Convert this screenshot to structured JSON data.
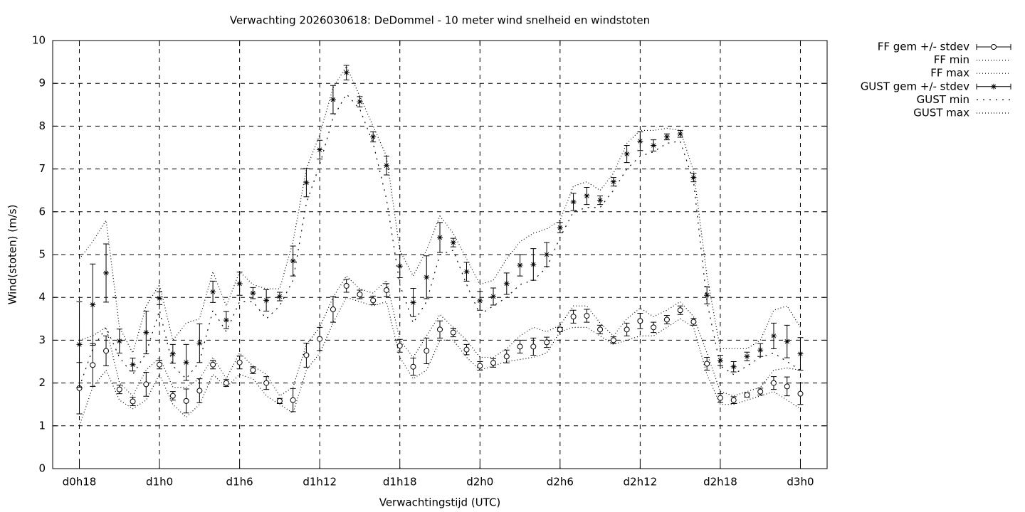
{
  "chart_data": {
    "type": "errorbar-line",
    "title": "Verwachting 2026030618: DeDommel - 10 meter wind snelheid en windstoten",
    "x_label": "Verwachtingstijd (UTC)",
    "y_label": "Wind(stoten) (m/s)",
    "x": [
      0,
      1,
      2,
      3,
      4,
      5,
      6,
      7,
      8,
      9,
      10,
      11,
      12,
      13,
      14,
      15,
      16,
      17,
      18,
      19,
      20,
      21,
      22,
      23,
      24,
      25,
      26,
      27,
      28,
      29,
      30,
      31,
      32,
      33,
      34,
      35,
      36,
      37,
      38,
      39,
      40,
      41,
      42,
      43,
      44,
      45,
      46,
      47,
      48,
      49,
      50,
      51,
      52,
      53,
      54
    ],
    "xlim": [
      -2,
      56
    ],
    "xticks": [
      {
        "value": 0,
        "label": "d0h18"
      },
      {
        "value": 6,
        "label": "d1h0"
      },
      {
        "value": 12,
        "label": "d1h6"
      },
      {
        "value": 18,
        "label": "d1h12"
      },
      {
        "value": 24,
        "label": "d1h18"
      },
      {
        "value": 30,
        "label": "d2h0"
      },
      {
        "value": 36,
        "label": "d2h6"
      },
      {
        "value": 42,
        "label": "d2h12"
      },
      {
        "value": 48,
        "label": "d2h18"
      },
      {
        "value": 54,
        "label": "d3h0"
      }
    ],
    "ylim": [
      0,
      10
    ],
    "yticks": [
      0,
      1,
      2,
      3,
      4,
      5,
      6,
      7,
      8,
      9,
      10
    ],
    "grid": true,
    "legend": "outside-right",
    "series": [
      {
        "name": "FF gem +/- stdev",
        "color": "#000000",
        "style": "errorbars",
        "marker": "circle",
        "values": [
          1.88,
          2.42,
          2.75,
          1.85,
          1.57,
          1.97,
          2.43,
          1.7,
          1.58,
          1.82,
          2.43,
          2.0,
          2.48,
          2.3,
          2.0,
          1.58,
          1.6,
          2.65,
          3.03,
          3.72,
          4.27,
          4.07,
          3.93,
          4.17,
          2.87,
          2.38,
          2.75,
          3.25,
          3.18,
          2.78,
          2.4,
          2.47,
          2.62,
          2.85,
          2.85,
          2.95,
          3.25,
          3.55,
          3.57,
          3.25,
          3.0,
          3.25,
          3.45,
          3.3,
          3.48,
          3.7,
          3.43,
          2.45,
          1.65,
          1.6,
          1.72,
          1.8,
          2.0,
          1.92,
          1.75
        ],
        "errors": [
          0.6,
          0.5,
          0.35,
          0.1,
          0.1,
          0.28,
          0.1,
          0.1,
          0.28,
          0.28,
          0.1,
          0.08,
          0.15,
          0.08,
          0.15,
          0.06,
          0.27,
          0.28,
          0.27,
          0.3,
          0.15,
          0.1,
          0.1,
          0.15,
          0.15,
          0.2,
          0.3,
          0.2,
          0.1,
          0.12,
          0.1,
          0.1,
          0.15,
          0.15,
          0.2,
          0.12,
          0.05,
          0.15,
          0.15,
          0.1,
          0.08,
          0.15,
          0.18,
          0.12,
          0.1,
          0.1,
          0.08,
          0.15,
          0.1,
          0.08,
          0.05,
          0.08,
          0.15,
          0.22,
          0.25
        ]
      },
      {
        "name": "FF min",
        "color": "#000000",
        "style": "dotted",
        "values": [
          1.0,
          1.9,
          2.3,
          1.6,
          1.4,
          1.6,
          2.2,
          1.5,
          1.2,
          1.5,
          2.2,
          1.9,
          2.2,
          2.1,
          1.7,
          1.5,
          1.3,
          2.3,
          2.7,
          3.4,
          4.0,
          3.9,
          3.8,
          3.9,
          2.6,
          2.1,
          2.3,
          3.0,
          3.0,
          2.6,
          2.3,
          2.4,
          2.5,
          2.55,
          2.6,
          2.7,
          3.2,
          3.3,
          3.3,
          3.1,
          2.9,
          3.0,
          3.1,
          3.1,
          3.3,
          3.5,
          3.3,
          2.2,
          1.5,
          1.5,
          1.6,
          1.7,
          1.8,
          1.6,
          1.4
        ]
      },
      {
        "name": "FF max",
        "color": "#000000",
        "style": "dotted",
        "values": [
          3.0,
          3.1,
          3.3,
          2.0,
          1.7,
          2.3,
          2.6,
          1.9,
          1.9,
          2.1,
          2.6,
          2.1,
          2.7,
          2.4,
          2.2,
          1.7,
          1.9,
          2.9,
          3.3,
          4.0,
          4.5,
          4.2,
          4.1,
          4.4,
          3.0,
          2.6,
          3.1,
          3.6,
          3.3,
          3.0,
          2.6,
          2.6,
          2.8,
          3.1,
          3.3,
          3.2,
          3.35,
          3.8,
          3.8,
          3.4,
          3.1,
          3.5,
          3.75,
          3.55,
          3.7,
          3.9,
          3.55,
          2.7,
          1.8,
          1.7,
          1.8,
          1.9,
          2.3,
          2.35,
          2.3
        ]
      },
      {
        "name": "GUST gem +/- stdev",
        "color": "#000000",
        "style": "errorbars",
        "marker": "star",
        "values": [
          2.9,
          3.83,
          4.57,
          2.98,
          2.43,
          3.18,
          3.98,
          2.68,
          2.48,
          2.93,
          4.13,
          3.47,
          4.32,
          4.1,
          3.93,
          4.02,
          4.85,
          6.68,
          7.45,
          8.62,
          9.25,
          8.57,
          7.75,
          7.08,
          4.73,
          3.88,
          4.47,
          5.4,
          5.28,
          4.6,
          3.92,
          4.02,
          4.32,
          4.75,
          4.77,
          5.0,
          5.63,
          6.23,
          6.37,
          6.27,
          6.7,
          7.35,
          7.65,
          7.55,
          7.75,
          7.82,
          6.8,
          4.05,
          2.53,
          2.38,
          2.62,
          2.77,
          3.1,
          2.97,
          2.68
        ],
        "errors": [
          1.0,
          0.95,
          0.68,
          0.28,
          0.15,
          0.5,
          0.15,
          0.22,
          0.42,
          0.45,
          0.25,
          0.2,
          0.27,
          0.13,
          0.25,
          0.1,
          0.35,
          0.33,
          0.22,
          0.33,
          0.17,
          0.12,
          0.12,
          0.22,
          0.27,
          0.33,
          0.5,
          0.35,
          0.1,
          0.22,
          0.22,
          0.2,
          0.25,
          0.25,
          0.37,
          0.28,
          0.12,
          0.2,
          0.2,
          0.1,
          0.1,
          0.2,
          0.22,
          0.13,
          0.07,
          0.08,
          0.1,
          0.2,
          0.12,
          0.12,
          0.1,
          0.15,
          0.3,
          0.38,
          0.38
        ]
      },
      {
        "name": "GUST min",
        "color": "#000000",
        "style": "dotted-wide",
        "values": [
          1.9,
          2.8,
          3.3,
          2.6,
          2.2,
          2.7,
          3.7,
          2.4,
          2.1,
          2.5,
          3.7,
          3.2,
          3.9,
          3.9,
          3.5,
          3.8,
          4.4,
          6.2,
          7.1,
          8.2,
          8.75,
          8.4,
          7.6,
          6.3,
          4.3,
          3.4,
          3.9,
          5.0,
          5.1,
          4.3,
          3.6,
          3.8,
          4.0,
          4.3,
          4.4,
          4.7,
          5.4,
          6.0,
          6.1,
          6.1,
          6.5,
          7.0,
          7.3,
          7.4,
          7.6,
          7.65,
          6.7,
          3.9,
          2.4,
          2.2,
          2.4,
          2.6,
          2.7,
          2.5,
          2.3
        ]
      },
      {
        "name": "GUST max",
        "color": "#000000",
        "style": "dotted",
        "values": [
          4.9,
          5.3,
          5.8,
          3.3,
          2.7,
          3.8,
          4.3,
          3.0,
          3.4,
          3.5,
          4.6,
          3.8,
          4.6,
          4.3,
          4.2,
          4.2,
          5.3,
          7.0,
          7.8,
          8.9,
          9.4,
          8.7,
          8.0,
          7.3,
          5.1,
          4.5,
          5.1,
          5.9,
          5.5,
          4.9,
          4.3,
          4.4,
          4.9,
          5.3,
          5.5,
          5.6,
          5.8,
          6.6,
          6.7,
          6.5,
          6.9,
          7.6,
          7.9,
          7.9,
          7.95,
          7.9,
          6.95,
          4.5,
          2.8,
          2.8,
          2.8,
          3.0,
          3.7,
          3.8,
          3.3
        ]
      }
    ]
  }
}
